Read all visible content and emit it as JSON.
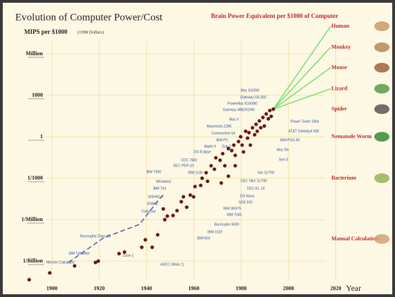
{
  "chart_data": {
    "type": "scatter",
    "title": "Evolution of Computer Power/Cost",
    "subtitle": "MIPS per $1000",
    "subtitle_note": "(1998 Dollars)",
    "right_title": "Brain Power Equivalent per $1000 of Computer",
    "xlabel": "Year",
    "log_y": true,
    "grid": true,
    "color": "#6b1414",
    "xlim": [
      1890,
      2030
    ],
    "ylim": [
      1e-11,
      100000000.0
    ],
    "xticks": [
      1900,
      1920,
      1940,
      1960,
      1980,
      2000,
      2020
    ],
    "yticks": [
      {
        "value": 1000000,
        "label": "Million"
      },
      1000,
      1,
      {
        "value": 0.001,
        "label": "1/1000"
      },
      {
        "value": 1e-06,
        "label": "1/Million"
      },
      {
        "value": 1e-09,
        "label": "1/Billion"
      }
    ],
    "x": [
      1890.4,
      1899.1,
      1909.6,
      1918.4,
      1919.6,
      1928.4,
      1930.7,
      1938.0,
      1939.5,
      1942.4,
      1944.7,
      1947.1,
      1947.7,
      1948.8,
      1951.2,
      1952.9,
      1954.7,
      1955.6,
      1957.0,
      1958.5,
      1959.9,
      1960.5,
      1962.9,
      1963.5,
      1965.2,
      1965.8,
      1967.3,
      1968.7,
      1969.3,
      1971.1,
      1971.6,
      1972.2,
      1973.1,
      1974.6,
      1974.6,
      1976.0,
      1976.9,
      1977.5,
      1977.5,
      1978.9,
      1979.8,
      1980.4,
      1981.0,
      1981.9,
      1982.7,
      1983.3,
      1983.9,
      1984.8,
      1985.7,
      1986.3,
      1986.8,
      1987.7,
      1988.3,
      1989.2,
      1989.8,
      1990.6,
      1991.5,
      1992.1,
      1992.7,
      1993.6
    ],
    "values": [
      4.5e-11,
      1.4e-10,
      4.5e-10,
      8e-10,
      1e-09,
      3.5e-09,
      4.5e-09,
      1e-08,
      3.5e-08,
      1e-08,
      8e-08,
      6e-06,
      1e-06,
      1.8e-06,
      2e-06,
      4.5e-06,
      2e-05,
      4.5e-05,
      8e-06,
      6e-05,
      4.5e-05,
      0.00025,
      0.0003,
      0.001,
      0.0025,
      0.0006,
      0.008,
      0.0045,
      0.03,
      0.02,
      0.00045,
      0.06,
      0.008,
      0.14,
      0.0014,
      0.1,
      0.25,
      0.045,
      0.008,
      0.45,
      1,
      0.25,
      0.08,
      2.5,
      0.8,
      2,
      0.25,
      4.5,
      1.4,
      8,
      2.5,
      14,
      4.5,
      25,
      6,
      45,
      20,
      80,
      30,
      100
    ],
    "trend_line": {
      "x": [
        1907,
        1922,
        1937,
        1945,
        1947
      ],
      "values": [
        8e-10,
        5e-08,
        4.5e-07,
        2.5e-05,
        6e-05
      ]
    },
    "trend_color": "#5060b0",
    "machines": [
      "Mac G3/266",
      "Gateway G6-200",
      "PowerMac 8100/80",
      "Gateway 486DX2/66",
      "Mac II",
      "Macintosh-128K",
      "Commodore 64",
      "IBM PC",
      "Sun-2",
      "Apple II",
      "DG Eclipse",
      "CDC 7600",
      "DEC PDP-10",
      "IBM 7090",
      "IBM 1130",
      "Whirlwind",
      "IBM 704",
      "UNIVAC I",
      "ENIAC",
      "Colossus",
      "Burroughs Class 16",
      "IBM Tabulator",
      "Monroe Calculator",
      "Zuse-1",
      "ASCC (Mark 1)",
      "Power Tower 180e",
      "AT&T Globalyst 600",
      "IBM PS/2-90",
      "Mac IIfx",
      "Sun-3",
      "Vax 11/750",
      "DEC VAX 11/780",
      "DEC-KL-10",
      "DG Nova",
      "SDS 920",
      "IBM 360/75",
      "IBM 7040",
      "Burroughs 5000",
      "IBM 1620",
      "IBM 650"
    ],
    "brain_levels": {
      "color": "#c0282a",
      "line_color": "#7be07b",
      "names": [
        "Human",
        "Monkey",
        "Mouse",
        "Lizard",
        "Spider",
        "Nematode Worm",
        "Bacterium",
        "Manual Calculation"
      ],
      "values": [
        100000000,
        3000000,
        100000,
        3000,
        100,
        1,
        0.001,
        4e-08
      ]
    }
  }
}
